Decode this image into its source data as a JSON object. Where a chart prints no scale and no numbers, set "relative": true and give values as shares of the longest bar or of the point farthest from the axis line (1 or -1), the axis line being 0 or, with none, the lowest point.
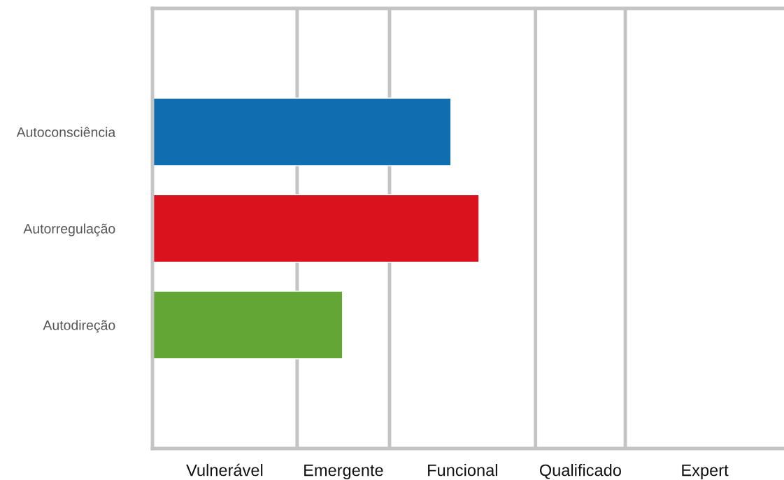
{
  "chart_data": {
    "type": "bar",
    "orientation": "horizontal",
    "relative": true,
    "categories": [
      "Autoconsciência",
      "Autorregulação",
      "Autodireção"
    ],
    "values": [
      0.914,
      1,
      0.582
    ],
    "colors": [
      "#106db0",
      "#da121d",
      "#63a636"
    ],
    "xlim": [
      0,
      1.934
    ],
    "ref_lines": [
      {
        "axis": "x",
        "value": 0.443,
        "color": "#c4c4c4"
      },
      {
        "axis": "x",
        "value": 0.726,
        "color": "#c4c4c4"
      },
      {
        "axis": "x",
        "value": 1.173,
        "color": "#c4c4c4"
      },
      {
        "axis": "x",
        "value": 1.448,
        "color": "#c4c4c4"
      }
    ],
    "annotations": [
      "Vulnerável",
      "Emergente",
      "Funcional",
      "Qualificado",
      "Expert"
    ],
    "grid": false,
    "legend": false
  }
}
